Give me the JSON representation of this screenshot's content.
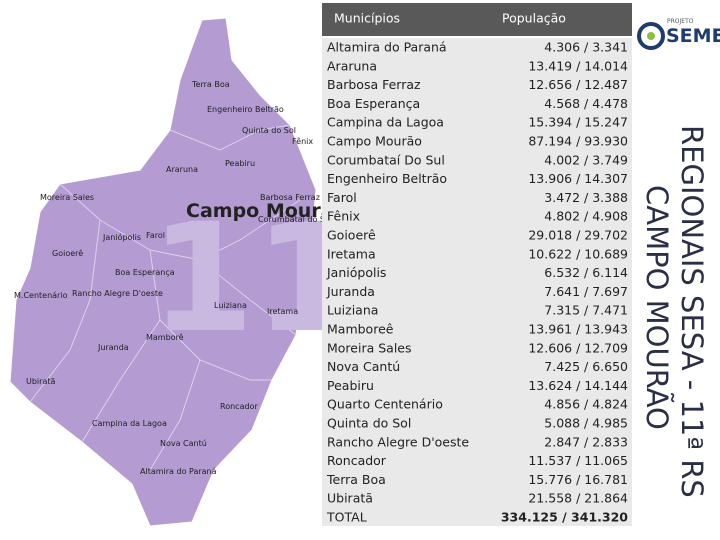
{
  "header": {
    "municipios": "Municípios",
    "populacao": "População"
  },
  "rows": [
    [
      "Altamira do Paraná",
      "4.306 / 3.341"
    ],
    [
      "Araruna",
      "13.419 / 14.014"
    ],
    [
      "Barbosa Ferraz",
      "12.656 / 12.487"
    ],
    [
      "Boa Esperança",
      "4.568 / 4.478"
    ],
    [
      "Campina da Lagoa",
      "15.394 / 15.247"
    ],
    [
      "Campo Mourão",
      "87.194 / 93.930"
    ],
    [
      "Corumbataí Do Sul",
      "4.002 / 3.749"
    ],
    [
      "Engenheiro Beltrão",
      "13.906 / 14.307"
    ],
    [
      "Farol",
      "3.472 / 3.388"
    ],
    [
      "Fênix",
      "4.802 / 4.908"
    ],
    [
      "Goioerê",
      "29.018 / 29.702"
    ],
    [
      "Iretama",
      "10.622 / 10.689"
    ],
    [
      "Janiópolis",
      "6.532 / 6.114"
    ],
    [
      "Juranda",
      "7.641 / 7.697"
    ],
    [
      "Luiziana",
      "7.315 / 7.471"
    ],
    [
      "Mamboreê",
      "13.961 / 13.943"
    ],
    [
      "Moreira Sales",
      "12.606 / 12.709"
    ],
    [
      "Nova Cantú",
      "7.425 / 6.650"
    ],
    [
      "Peabiru",
      "13.624 / 14.144"
    ],
    [
      "Quarto Centenário",
      "4.856 / 4.824"
    ],
    [
      "Quinta do Sol",
      "5.088 / 4.985"
    ],
    [
      "Rancho Alegre D'oeste",
      "2.847 / 2.833"
    ],
    [
      "Roncador",
      "11.537 / 11.065"
    ],
    [
      "Terra Boa",
      "15.776 / 16.781"
    ],
    [
      "Ubiratã",
      "21.558 / 21.864"
    ]
  ],
  "total": [
    "TOTAL",
    "334.125 / 341.320"
  ],
  "logo": {
    "small": "PROJETO",
    "name": "SEMEAR"
  },
  "side_title": [
    "REGIONAIS SESA - 11ª RS",
    "CAMPO MOURÃO"
  ],
  "map": {
    "city": "Campo Mourão",
    "watermark": "11",
    "labels": [
      "Terra Boa",
      "Engenheiro Beltrão",
      "Quinta do Sol",
      "Fênix",
      "Araruna",
      "Peabiru",
      "Moreira Sales",
      "Barbosa Ferraz",
      "Corumbataí do Sul",
      "Janiópolis",
      "Farol",
      "Goioerê",
      "Boa Esperança",
      "M.Centenário",
      "Rancho Alegre D'oeste",
      "Luiziana",
      "Iretama",
      "Juranda",
      "Mamborê",
      "Ubiratã",
      "Roncador",
      "Campina da Lagoa",
      "Nova Cantú",
      "Altamira do Paraná"
    ]
  }
}
